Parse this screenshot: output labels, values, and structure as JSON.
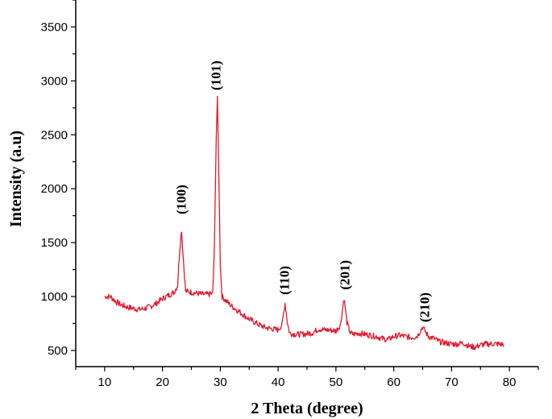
{
  "chart_data": {
    "type": "line",
    "title": "",
    "xlabel": "2 Theta (degree)",
    "ylabel": "Intensity (a.u)",
    "xlim": [
      5,
      85
    ],
    "ylim": [
      350,
      3750
    ],
    "x_ticks": [
      10,
      20,
      30,
      40,
      50,
      60,
      70,
      80
    ],
    "y_ticks": [
      500,
      1000,
      1500,
      2000,
      2500,
      3000,
      3500
    ],
    "grid": false,
    "legend": "none",
    "series": [
      {
        "color": "#e0192e",
        "points": [
          [
            10,
            1000
          ],
          [
            11,
            1000
          ],
          [
            12,
            950
          ],
          [
            13,
            920
          ],
          [
            14,
            900
          ],
          [
            15,
            890
          ],
          [
            16,
            880
          ],
          [
            17,
            890
          ],
          [
            18,
            910
          ],
          [
            19,
            940
          ],
          [
            20,
            980
          ],
          [
            21,
            1010
          ],
          [
            22,
            1040
          ],
          [
            22.6,
            1100
          ],
          [
            23.0,
            1450
          ],
          [
            23.3,
            1620
          ],
          [
            23.6,
            1350
          ],
          [
            24,
            1050
          ],
          [
            25,
            1040
          ],
          [
            26,
            1030
          ],
          [
            27,
            1020
          ],
          [
            28,
            1020
          ],
          [
            28.7,
            1030
          ],
          [
            29.0,
            1500
          ],
          [
            29.3,
            2500
          ],
          [
            29.5,
            2830
          ],
          [
            29.7,
            2300
          ],
          [
            30.0,
            1300
          ],
          [
            30.3,
            1000
          ],
          [
            31,
            960
          ],
          [
            32,
            910
          ],
          [
            33,
            870
          ],
          [
            34,
            830
          ],
          [
            35,
            790
          ],
          [
            36,
            760
          ],
          [
            37,
            730
          ],
          [
            38,
            710
          ],
          [
            39,
            700
          ],
          [
            40,
            690
          ],
          [
            40.7,
            740
          ],
          [
            41.2,
            940
          ],
          [
            41.6,
            760
          ],
          [
            42,
            660
          ],
          [
            43,
            650
          ],
          [
            44,
            650
          ],
          [
            45,
            655
          ],
          [
            46,
            665
          ],
          [
            47,
            700
          ],
          [
            48,
            690
          ],
          [
            49,
            690
          ],
          [
            50,
            680
          ],
          [
            50.8,
            740
          ],
          [
            51.4,
            990
          ],
          [
            51.9,
            760
          ],
          [
            52.5,
            660
          ],
          [
            53,
            650
          ],
          [
            54,
            660
          ],
          [
            55,
            650
          ],
          [
            56,
            640
          ],
          [
            57,
            630
          ],
          [
            58,
            610
          ],
          [
            59,
            600
          ],
          [
            60,
            630
          ],
          [
            61,
            640
          ],
          [
            62,
            630
          ],
          [
            63,
            620
          ],
          [
            64,
            630
          ],
          [
            64.6,
            680
          ],
          [
            65.0,
            720
          ],
          [
            65.4,
            680
          ],
          [
            66,
            630
          ],
          [
            67,
            610
          ],
          [
            68,
            580
          ],
          [
            69,
            570
          ],
          [
            70,
            560
          ],
          [
            71,
            560
          ],
          [
            72,
            570
          ],
          [
            73,
            540
          ],
          [
            74,
            530
          ],
          [
            75,
            550
          ],
          [
            76,
            560
          ],
          [
            77,
            560
          ],
          [
            78,
            560
          ],
          [
            79,
            555
          ]
        ]
      }
    ],
    "annotations": [
      {
        "text": "(100)",
        "x": 23.2,
        "y": 1900
      },
      {
        "text": "(101)",
        "x": 29.2,
        "y": 3050
      },
      {
        "text": "(110)",
        "x": 41.0,
        "y": 1150
      },
      {
        "text": "(201)",
        "x": 51.5,
        "y": 1200
      },
      {
        "text": "(210)",
        "x": 65.3,
        "y": 900
      }
    ]
  }
}
